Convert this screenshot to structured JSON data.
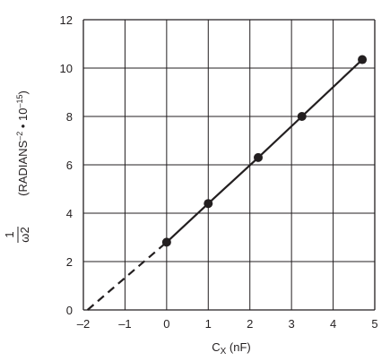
{
  "chart_data": {
    "type": "line",
    "xlabel_main": "C",
    "xlabel_sub": "X",
    "xlabel_unit": " (nF)",
    "ylabel_num": "1",
    "ylabel_den": "ω2",
    "ylabel_rest": "(RADIANS",
    "ylabel_exp1": "–2",
    "ylabel_mid": " • 10",
    "ylabel_exp2": "–15",
    "ylabel_close": ")",
    "xlim": [
      -2,
      5
    ],
    "ylim": [
      0,
      12
    ],
    "xticks": [
      "–2",
      "–1",
      "0",
      "1",
      "2",
      "3",
      "4",
      "5"
    ],
    "yticks": [
      "0",
      "2",
      "4",
      "6",
      "8",
      "10",
      "12"
    ],
    "grid": true,
    "series": [
      {
        "x": [
          0,
          1,
          2.2,
          3.25,
          4.7
        ],
        "y": [
          2.8,
          4.4,
          6.3,
          8.0,
          10.35
        ],
        "markers": true,
        "color": "#231f20"
      }
    ],
    "extrapolation": {
      "x": [
        -1.9,
        0
      ],
      "y": [
        0,
        2.8
      ],
      "style": "dashed"
    }
  }
}
